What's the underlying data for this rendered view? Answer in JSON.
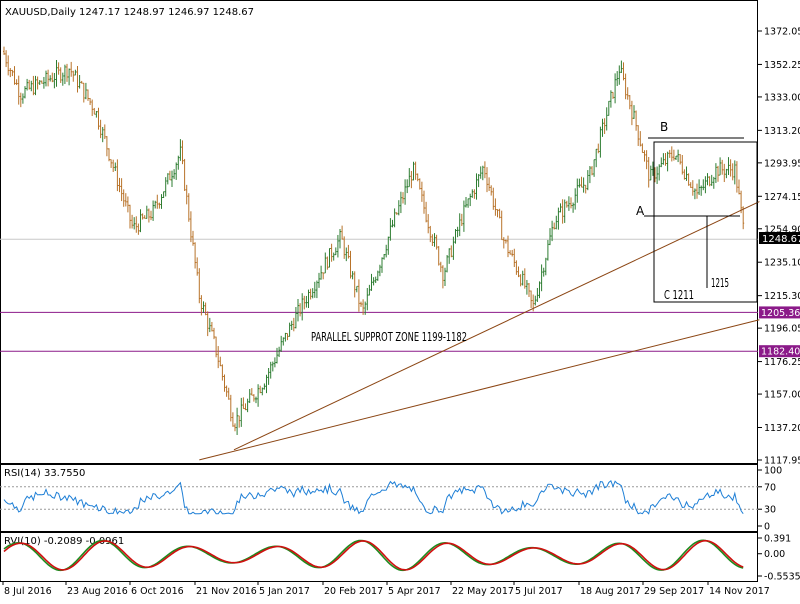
{
  "main_panel": {
    "header": "XAUUSD,Daily  1247.17 1248.97 1246.97 1248.67",
    "price_ticks": [
      "1372.05",
      "1352.25",
      "1333.00",
      "1313.20",
      "1293.95",
      "1274.15",
      "1254.90",
      "1235.10",
      "1215.30",
      "1196.05",
      "1176.25",
      "1157.00",
      "1137.20",
      "1117.95"
    ],
    "current_price_label": "1248.67",
    "annotations": {
      "zone_text": "PARALLEL SUPPROT ZONE 1199-1182",
      "label_a": "A",
      "label_b": "B",
      "label_c": "C 1211",
      "label_1215": "1215"
    }
  },
  "horizontal_levels": [
    {
      "label": "1205.36",
      "color": "#8b1a89"
    },
    {
      "label": "1182.40",
      "color": "#8b1a89"
    }
  ],
  "rsi_panel": {
    "header": "RSI(14) 33.7550",
    "ticks": [
      "100",
      "70",
      "30",
      "0"
    ]
  },
  "rvi_panel": {
    "header": "RVI(10) -0.2089 -0.0961",
    "ticks": [
      "0.391",
      "0.00",
      "-0.5535"
    ]
  },
  "date_ticks": [
    "8 Jul 2016",
    "23 Aug 2016",
    "6 Oct 2016",
    "21 Nov 2016",
    "5 Jan 2017",
    "20 Feb 2017",
    "5 Apr 2017",
    "22 May 2017",
    "5 Jul 2017",
    "18 Aug 2017",
    "29 Sep 2017",
    "14 Nov 2017"
  ],
  "chart_data": {
    "type": "ohlc",
    "symbol": "XAUUSD",
    "timeframe": "Daily",
    "ylim": [
      1117.95,
      1372.05
    ],
    "last": {
      "open": 1247.17,
      "high": 1248.97,
      "low": 1246.97,
      "close": 1248.67
    },
    "x": [
      "2016-07-08",
      "2016-07-20",
      "2016-08-23",
      "2016-09-10",
      "2016-10-06",
      "2016-10-20",
      "2016-11-08",
      "2016-11-21",
      "2016-12-02",
      "2016-12-15",
      "2017-01-05",
      "2017-01-25",
      "2017-02-20",
      "2017-02-27",
      "2017-03-14",
      "2017-04-05",
      "2017-04-18",
      "2017-05-09",
      "2017-05-22",
      "2017-06-06",
      "2017-06-20",
      "2017-07-05",
      "2017-07-10",
      "2017-07-25",
      "2017-08-18",
      "2017-09-08",
      "2017-09-20",
      "2017-09-29",
      "2017-10-16",
      "2017-11-01",
      "2017-11-14",
      "2017-11-27",
      "2017-12-04"
    ],
    "close": [
      1360,
      1335,
      1350,
      1325,
      1255,
      1265,
      1300,
      1215,
      1185,
      1140,
      1165,
      1200,
      1240,
      1250,
      1205,
      1260,
      1290,
      1228,
      1262,
      1292,
      1248,
      1220,
      1208,
      1260,
      1285,
      1350,
      1315,
      1285,
      1300,
      1275,
      1290,
      1290,
      1248.67
    ],
    "levels": [
      1205.36,
      1182.4
    ],
    "trendlines": [
      {
        "from": [
          "2016-12-15",
          1124
        ],
        "to": [
          "2017-12-14",
          1271
        ]
      },
      {
        "from": [
          "2016-11-21",
          1118
        ],
        "to": [
          "2017-12-14",
          1201
        ]
      }
    ],
    "rsi": {
      "period": 14,
      "last": 33.755,
      "levels": [
        70,
        30
      ]
    },
    "rvi": {
      "period": 10,
      "values": [
        -0.2089,
        -0.0961
      ]
    }
  }
}
